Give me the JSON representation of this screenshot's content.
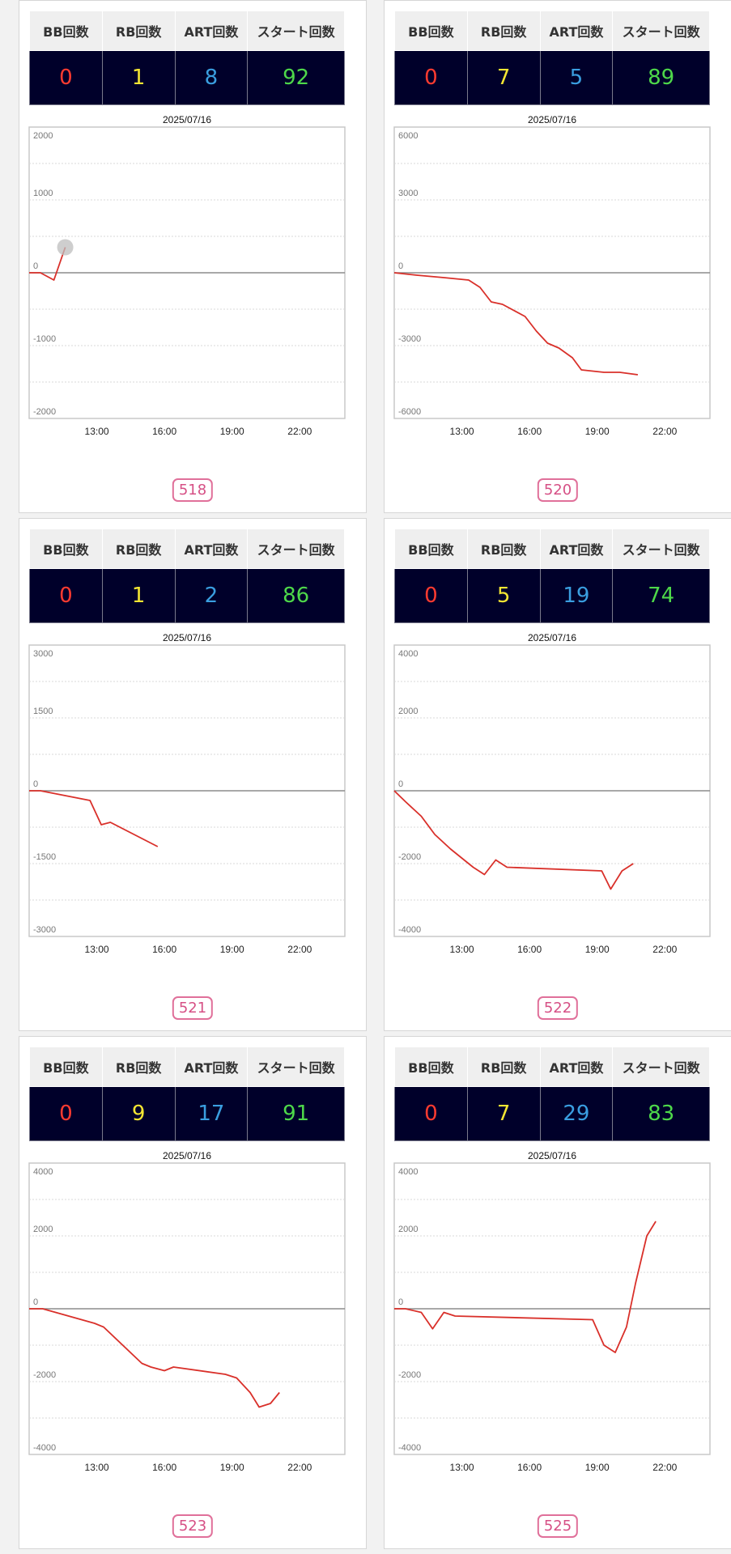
{
  "colors": {
    "bb": "#ff3b30",
    "rb": "#f5e633",
    "art": "#3a9ee0",
    "start": "#4ed84a",
    "line": "#d9302a",
    "header_bg": "#efefef",
    "value_bg": "#00002a",
    "badge": "#d65085"
  },
  "headers": [
    "BB回数",
    "RB回数",
    "ART回数",
    "スタート回数"
  ],
  "panels": [
    {
      "machine": "518",
      "bb": "0",
      "rb": "1",
      "art": "8",
      "start": "92"
    },
    {
      "machine": "520",
      "bb": "0",
      "rb": "7",
      "art": "5",
      "start": "89"
    },
    {
      "machine": "521",
      "bb": "0",
      "rb": "1",
      "art": "2",
      "start": "86"
    },
    {
      "machine": "522",
      "bb": "0",
      "rb": "5",
      "art": "19",
      "start": "74"
    },
    {
      "machine": "523",
      "bb": "0",
      "rb": "9",
      "art": "17",
      "start": "91"
    },
    {
      "machine": "525",
      "bb": "0",
      "rb": "7",
      "art": "29",
      "start": "83"
    }
  ],
  "chart_data": [
    {
      "type": "line",
      "title": "2025/07/16",
      "xlabel": "",
      "ylabel": "",
      "x_ticks": [
        "13:00",
        "16:00",
        "19:00",
        "22:00"
      ],
      "xlim": [
        10,
        24
      ],
      "y_ticks": [
        "2000",
        "1000",
        "0",
        "-1000",
        "-2000"
      ],
      "ylim": [
        -2000,
        2000
      ],
      "grid": true,
      "x": [
        10,
        10.5,
        11.1,
        11.6
      ],
      "y": [
        0,
        0,
        -100,
        350
      ],
      "marker_last": true
    },
    {
      "type": "line",
      "title": "2025/07/16",
      "xlabel": "",
      "ylabel": "",
      "x_ticks": [
        "13:00",
        "16:00",
        "19:00",
        "22:00"
      ],
      "xlim": [
        10,
        24
      ],
      "y_ticks": [
        "6000",
        "3000",
        "0",
        "-3000",
        "-6000"
      ],
      "ylim": [
        -6000,
        6000
      ],
      "grid": true,
      "x": [
        10,
        11,
        12.2,
        13.3,
        13.8,
        14.3,
        14.8,
        15.8,
        16.3,
        16.8,
        17.3,
        17.9,
        18.3,
        18.8,
        19.3,
        20,
        20.8
      ],
      "y": [
        0,
        -100,
        -200,
        -300,
        -600,
        -1200,
        -1300,
        -1800,
        -2400,
        -2900,
        -3100,
        -3500,
        -4000,
        -4050,
        -4100,
        -4100,
        -4200
      ],
      "marker_last": false
    },
    {
      "type": "line",
      "title": "2025/07/16",
      "xlabel": "",
      "ylabel": "",
      "x_ticks": [
        "13:00",
        "16:00",
        "19:00",
        "22:00"
      ],
      "xlim": [
        10,
        24
      ],
      "y_ticks": [
        "3000",
        "1500",
        "0",
        "-1500",
        "-3000"
      ],
      "ylim": [
        -3000,
        3000
      ],
      "grid": true,
      "x": [
        10,
        10.5,
        12.7,
        13.2,
        13.6,
        15.7
      ],
      "y": [
        0,
        0,
        -200,
        -700,
        -650,
        -1150
      ],
      "marker_last": false
    },
    {
      "type": "line",
      "title": "2025/07/16",
      "xlabel": "",
      "ylabel": "",
      "x_ticks": [
        "13:00",
        "16:00",
        "19:00",
        "22:00"
      ],
      "xlim": [
        10,
        24
      ],
      "y_ticks": [
        "4000",
        "2000",
        "0",
        "-2000",
        "-4000"
      ],
      "ylim": [
        -4000,
        4000
      ],
      "grid": true,
      "x": [
        10,
        10.5,
        11.2,
        11.8,
        12.5,
        13.5,
        14,
        14.5,
        15,
        19.2,
        19.6,
        20.1,
        20.6
      ],
      "y": [
        0,
        -300,
        -700,
        -1200,
        -1600,
        -2100,
        -2300,
        -1900,
        -2100,
        -2200,
        -2700,
        -2200,
        -2000
      ],
      "marker_last": false
    },
    {
      "type": "line",
      "title": "2025/07/16",
      "xlabel": "",
      "ylabel": "",
      "x_ticks": [
        "13:00",
        "16:00",
        "19:00",
        "22:00"
      ],
      "xlim": [
        10,
        24
      ],
      "y_ticks": [
        "4000",
        "2000",
        "0",
        "-2000",
        "-4000"
      ],
      "ylim": [
        -4000,
        4000
      ],
      "grid": true,
      "x": [
        10,
        10.6,
        12.9,
        13.3,
        15,
        15.4,
        16,
        16.4,
        18.7,
        19.2,
        19.8,
        20.2,
        20.7,
        21.1
      ],
      "y": [
        0,
        0,
        -400,
        -500,
        -1500,
        -1600,
        -1700,
        -1600,
        -1800,
        -1900,
        -2300,
        -2700,
        -2600,
        -2300
      ],
      "marker_last": false
    },
    {
      "type": "line",
      "title": "2025/07/16",
      "xlabel": "",
      "ylabel": "",
      "x_ticks": [
        "13:00",
        "16:00",
        "19:00",
        "22:00"
      ],
      "xlim": [
        10,
        24
      ],
      "y_ticks": [
        "4000",
        "2000",
        "0",
        "-2000",
        "-4000"
      ],
      "ylim": [
        -4000,
        4000
      ],
      "grid": true,
      "x": [
        10,
        10.5,
        11.2,
        11.7,
        12.2,
        12.7,
        18.8,
        19.3,
        19.8,
        20.3,
        20.7,
        21.2,
        21.6
      ],
      "y": [
        0,
        0,
        -100,
        -550,
        -100,
        -200,
        -300,
        -1000,
        -1200,
        -500,
        700,
        2000,
        2400
      ],
      "marker_last": false
    }
  ]
}
